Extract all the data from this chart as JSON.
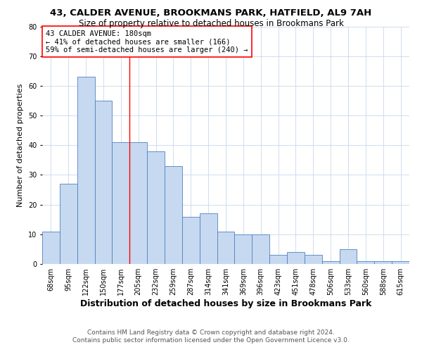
{
  "title1": "43, CALDER AVENUE, BROOKMANS PARK, HATFIELD, AL9 7AH",
  "title2": "Size of property relative to detached houses in Brookmans Park",
  "xlabel": "Distribution of detached houses by size in Brookmans Park",
  "ylabel": "Number of detached properties",
  "footnote1": "Contains HM Land Registry data © Crown copyright and database right 2024.",
  "footnote2": "Contains public sector information licensed under the Open Government Licence v3.0.",
  "bin_labels": [
    "68sqm",
    "95sqm",
    "122sqm",
    "150sqm",
    "177sqm",
    "205sqm",
    "232sqm",
    "259sqm",
    "287sqm",
    "314sqm",
    "341sqm",
    "369sqm",
    "396sqm",
    "423sqm",
    "451sqm",
    "478sqm",
    "506sqm",
    "533sqm",
    "560sqm",
    "588sqm",
    "615sqm"
  ],
  "values": [
    11,
    27,
    63,
    55,
    41,
    41,
    38,
    33,
    16,
    17,
    11,
    10,
    10,
    3,
    4,
    3,
    1,
    5,
    1,
    1,
    1
  ],
  "bar_color": "#c6d9f1",
  "bar_edge_color": "#4f81bd",
  "red_line_index": 4.5,
  "annotation_title": "43 CALDER AVENUE: 180sqm",
  "annotation_line1": "← 41% of detached houses are smaller (166)",
  "annotation_line2": "59% of semi-detached houses are larger (240) →",
  "annotation_box_color": "white",
  "annotation_box_edge": "red",
  "ylim": [
    0,
    80
  ],
  "yticks": [
    0,
    10,
    20,
    30,
    40,
    50,
    60,
    70,
    80
  ],
  "grid_color": "#c8d8ec",
  "background_color": "white",
  "title1_fontsize": 9.5,
  "title2_fontsize": 8.5,
  "xlabel_fontsize": 9,
  "ylabel_fontsize": 8,
  "tick_fontsize": 7,
  "annotation_fontsize": 7.5,
  "footnote_fontsize": 6.5
}
